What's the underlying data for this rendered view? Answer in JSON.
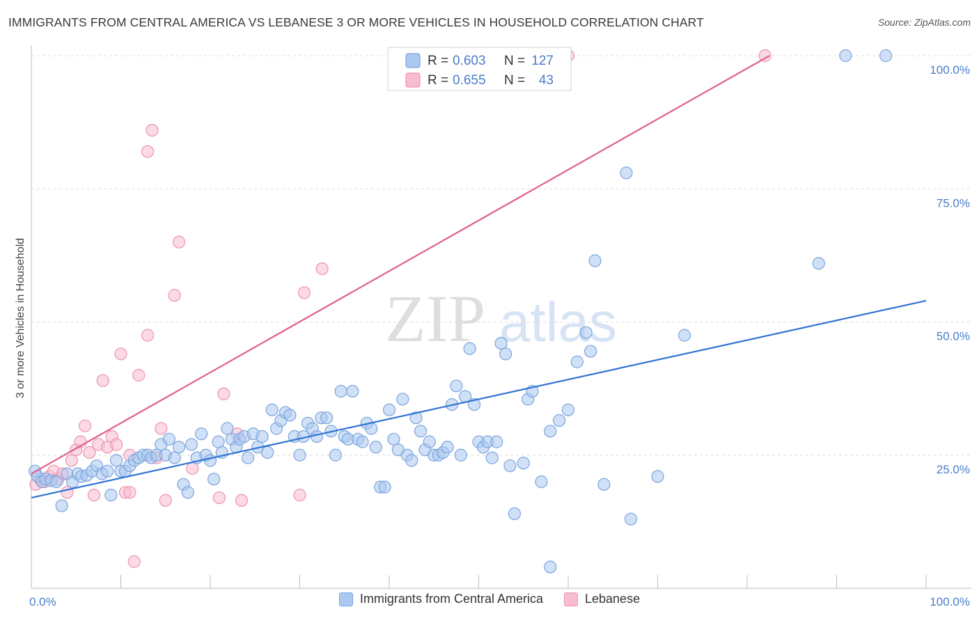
{
  "title": "IMMIGRANTS FROM CENTRAL AMERICA VS LEBANESE 3 OR MORE VEHICLES IN HOUSEHOLD CORRELATION CHART",
  "source": "Source: ZipAtlas.com",
  "watermark": {
    "zip": "ZIP",
    "atlas": "atlas"
  },
  "colors": {
    "blue_fill": "#aac8f0",
    "blue_stroke": "#7aa4dc",
    "blue_line": "#2f73d2",
    "pink_fill": "#f8bcd0",
    "pink_stroke": "#ec92b0",
    "pink_line": "#e0608c",
    "axis_text": "#4a7cc9"
  },
  "chart_data": {
    "type": "scatter",
    "ylabel": "3 or more Vehicles in Household",
    "xlim": [
      0,
      100
    ],
    "ylim": [
      0,
      100
    ],
    "x_tick_labels": [
      "0.0%",
      "100.0%"
    ],
    "y_ticks": [
      25,
      50,
      75,
      100
    ],
    "y_tick_labels": [
      "25.0%",
      "50.0%",
      "75.0%",
      "100.0%"
    ],
    "grid": "horizontal dashed",
    "legend_inset": [
      {
        "r_label": "R =",
        "r_value": "0.603",
        "n_label": "N =",
        "n_value": "127"
      },
      {
        "r_label": "R =",
        "r_value": "0.655",
        "n_label": "N =",
        "n_value": "43"
      }
    ],
    "series": [
      {
        "name": "Immigrants from Central America",
        "color": "blue",
        "trend": [
          [
            0,
            17.0
          ],
          [
            100,
            54.0
          ]
        ],
        "points": [
          [
            0.4,
            22
          ],
          [
            0.7,
            21
          ],
          [
            1.2,
            20
          ],
          [
            1.6,
            20.5
          ],
          [
            2.2,
            20.2
          ],
          [
            2.8,
            20
          ],
          [
            3.4,
            15.5
          ],
          [
            4,
            21.5
          ],
          [
            4.6,
            20
          ],
          [
            5.2,
            21.5
          ],
          [
            5.6,
            21
          ],
          [
            6.2,
            21.2
          ],
          [
            6.8,
            22
          ],
          [
            7.3,
            23
          ],
          [
            7.9,
            21.5
          ],
          [
            8.5,
            22
          ],
          [
            8.9,
            17.5
          ],
          [
            9.5,
            24
          ],
          [
            10,
            22
          ],
          [
            10.5,
            22
          ],
          [
            11,
            23
          ],
          [
            11.5,
            24
          ],
          [
            12,
            24.5
          ],
          [
            12.5,
            25
          ],
          [
            13,
            25
          ],
          [
            13.4,
            24.5
          ],
          [
            14,
            25
          ],
          [
            14.5,
            27
          ],
          [
            15,
            25
          ],
          [
            15.4,
            28
          ],
          [
            16,
            24.5
          ],
          [
            16.5,
            26.5
          ],
          [
            17,
            19.5
          ],
          [
            17.5,
            18
          ],
          [
            17.9,
            27
          ],
          [
            18.5,
            24.5
          ],
          [
            19,
            29
          ],
          [
            19.5,
            25
          ],
          [
            20,
            24
          ],
          [
            20.4,
            20.5
          ],
          [
            20.9,
            27.5
          ],
          [
            21.3,
            25.5
          ],
          [
            21.9,
            30
          ],
          [
            22.4,
            28
          ],
          [
            22.9,
            26.5
          ],
          [
            23.3,
            28
          ],
          [
            23.8,
            28.5
          ],
          [
            24.2,
            24.5
          ],
          [
            24.8,
            29
          ],
          [
            25.3,
            26.5
          ],
          [
            25.8,
            28.5
          ],
          [
            26.4,
            25.5
          ],
          [
            26.9,
            33.5
          ],
          [
            27.4,
            30
          ],
          [
            27.9,
            31.5
          ],
          [
            28.4,
            33
          ],
          [
            28.9,
            32.5
          ],
          [
            29.4,
            28.5
          ],
          [
            30,
            25
          ],
          [
            30.4,
            28.5
          ],
          [
            30.9,
            31
          ],
          [
            31.4,
            30
          ],
          [
            31.9,
            28.5
          ],
          [
            32.4,
            32
          ],
          [
            33,
            32
          ],
          [
            33.5,
            29.5
          ],
          [
            34,
            25
          ],
          [
            34.6,
            37
          ],
          [
            35,
            28.5
          ],
          [
            35.4,
            28
          ],
          [
            35.9,
            37
          ],
          [
            36.5,
            28
          ],
          [
            37,
            27.5
          ],
          [
            37.5,
            31
          ],
          [
            38,
            30
          ],
          [
            38.5,
            26.5
          ],
          [
            39,
            19
          ],
          [
            39.5,
            19
          ],
          [
            40,
            33.5
          ],
          [
            40.5,
            28
          ],
          [
            41,
            26
          ],
          [
            41.5,
            35.5
          ],
          [
            42,
            25
          ],
          [
            42.5,
            24
          ],
          [
            43,
            32
          ],
          [
            43.5,
            29.5
          ],
          [
            44,
            26
          ],
          [
            44.5,
            27.5
          ],
          [
            45,
            25
          ],
          [
            45.5,
            25
          ],
          [
            46,
            25.5
          ],
          [
            46.5,
            26.5
          ],
          [
            47,
            34.5
          ],
          [
            47.5,
            38
          ],
          [
            48,
            25
          ],
          [
            48.5,
            36
          ],
          [
            49,
            45
          ],
          [
            49.5,
            34.5
          ],
          [
            50,
            27.5
          ],
          [
            50.5,
            26.5
          ],
          [
            51,
            27.5
          ],
          [
            51.5,
            24.5
          ],
          [
            52,
            27.5
          ],
          [
            52.5,
            46
          ],
          [
            53,
            44
          ],
          [
            53.5,
            23
          ],
          [
            54,
            14
          ],
          [
            55,
            23.5
          ],
          [
            55.5,
            35.5
          ],
          [
            56,
            37
          ],
          [
            57,
            20
          ],
          [
            58,
            29.5
          ],
          [
            59,
            31.5
          ],
          [
            60,
            33.5
          ],
          [
            61,
            42.5
          ],
          [
            62,
            48
          ],
          [
            62.5,
            44.5
          ],
          [
            63,
            61.5
          ],
          [
            64,
            19.5
          ],
          [
            66.5,
            78
          ],
          [
            67,
            13
          ],
          [
            70,
            21
          ],
          [
            73,
            47.5
          ],
          [
            88,
            61
          ],
          [
            91,
            100
          ],
          [
            95.5,
            100
          ],
          [
            58,
            4
          ]
        ]
      },
      {
        "name": "Lebanese",
        "color": "pink",
        "trend": [
          [
            0,
            21.5
          ],
          [
            82.5,
            100
          ]
        ],
        "points": [
          [
            0.5,
            19.5
          ],
          [
            1,
            20.5
          ],
          [
            1.5,
            20
          ],
          [
            2,
            21
          ],
          [
            2.5,
            22
          ],
          [
            3,
            20.5
          ],
          [
            3.5,
            21.5
          ],
          [
            4,
            18
          ],
          [
            4.5,
            24
          ],
          [
            5,
            26
          ],
          [
            5.5,
            27.5
          ],
          [
            6,
            30.5
          ],
          [
            6.5,
            25.5
          ],
          [
            7,
            17.5
          ],
          [
            7.5,
            27
          ],
          [
            8,
            39
          ],
          [
            8.5,
            26.5
          ],
          [
            9,
            28.5
          ],
          [
            9.5,
            27
          ],
          [
            10,
            44
          ],
          [
            10.5,
            18
          ],
          [
            11,
            25
          ],
          [
            11.5,
            5
          ],
          [
            12,
            40
          ],
          [
            13,
            82
          ],
          [
            13.5,
            86
          ],
          [
            13,
            47.5
          ],
          [
            14,
            24.5
          ],
          [
            14.5,
            30
          ],
          [
            15,
            16.5
          ],
          [
            16,
            55
          ],
          [
            16.5,
            65
          ],
          [
            18,
            22.5
          ],
          [
            21,
            17
          ],
          [
            21.5,
            36.5
          ],
          [
            23,
            29
          ],
          [
            23.5,
            16.5
          ],
          [
            30,
            17.5
          ],
          [
            30.5,
            55.5
          ],
          [
            32.5,
            60
          ],
          [
            60,
            100
          ],
          [
            82,
            100
          ],
          [
            11,
            18
          ]
        ]
      }
    ]
  }
}
